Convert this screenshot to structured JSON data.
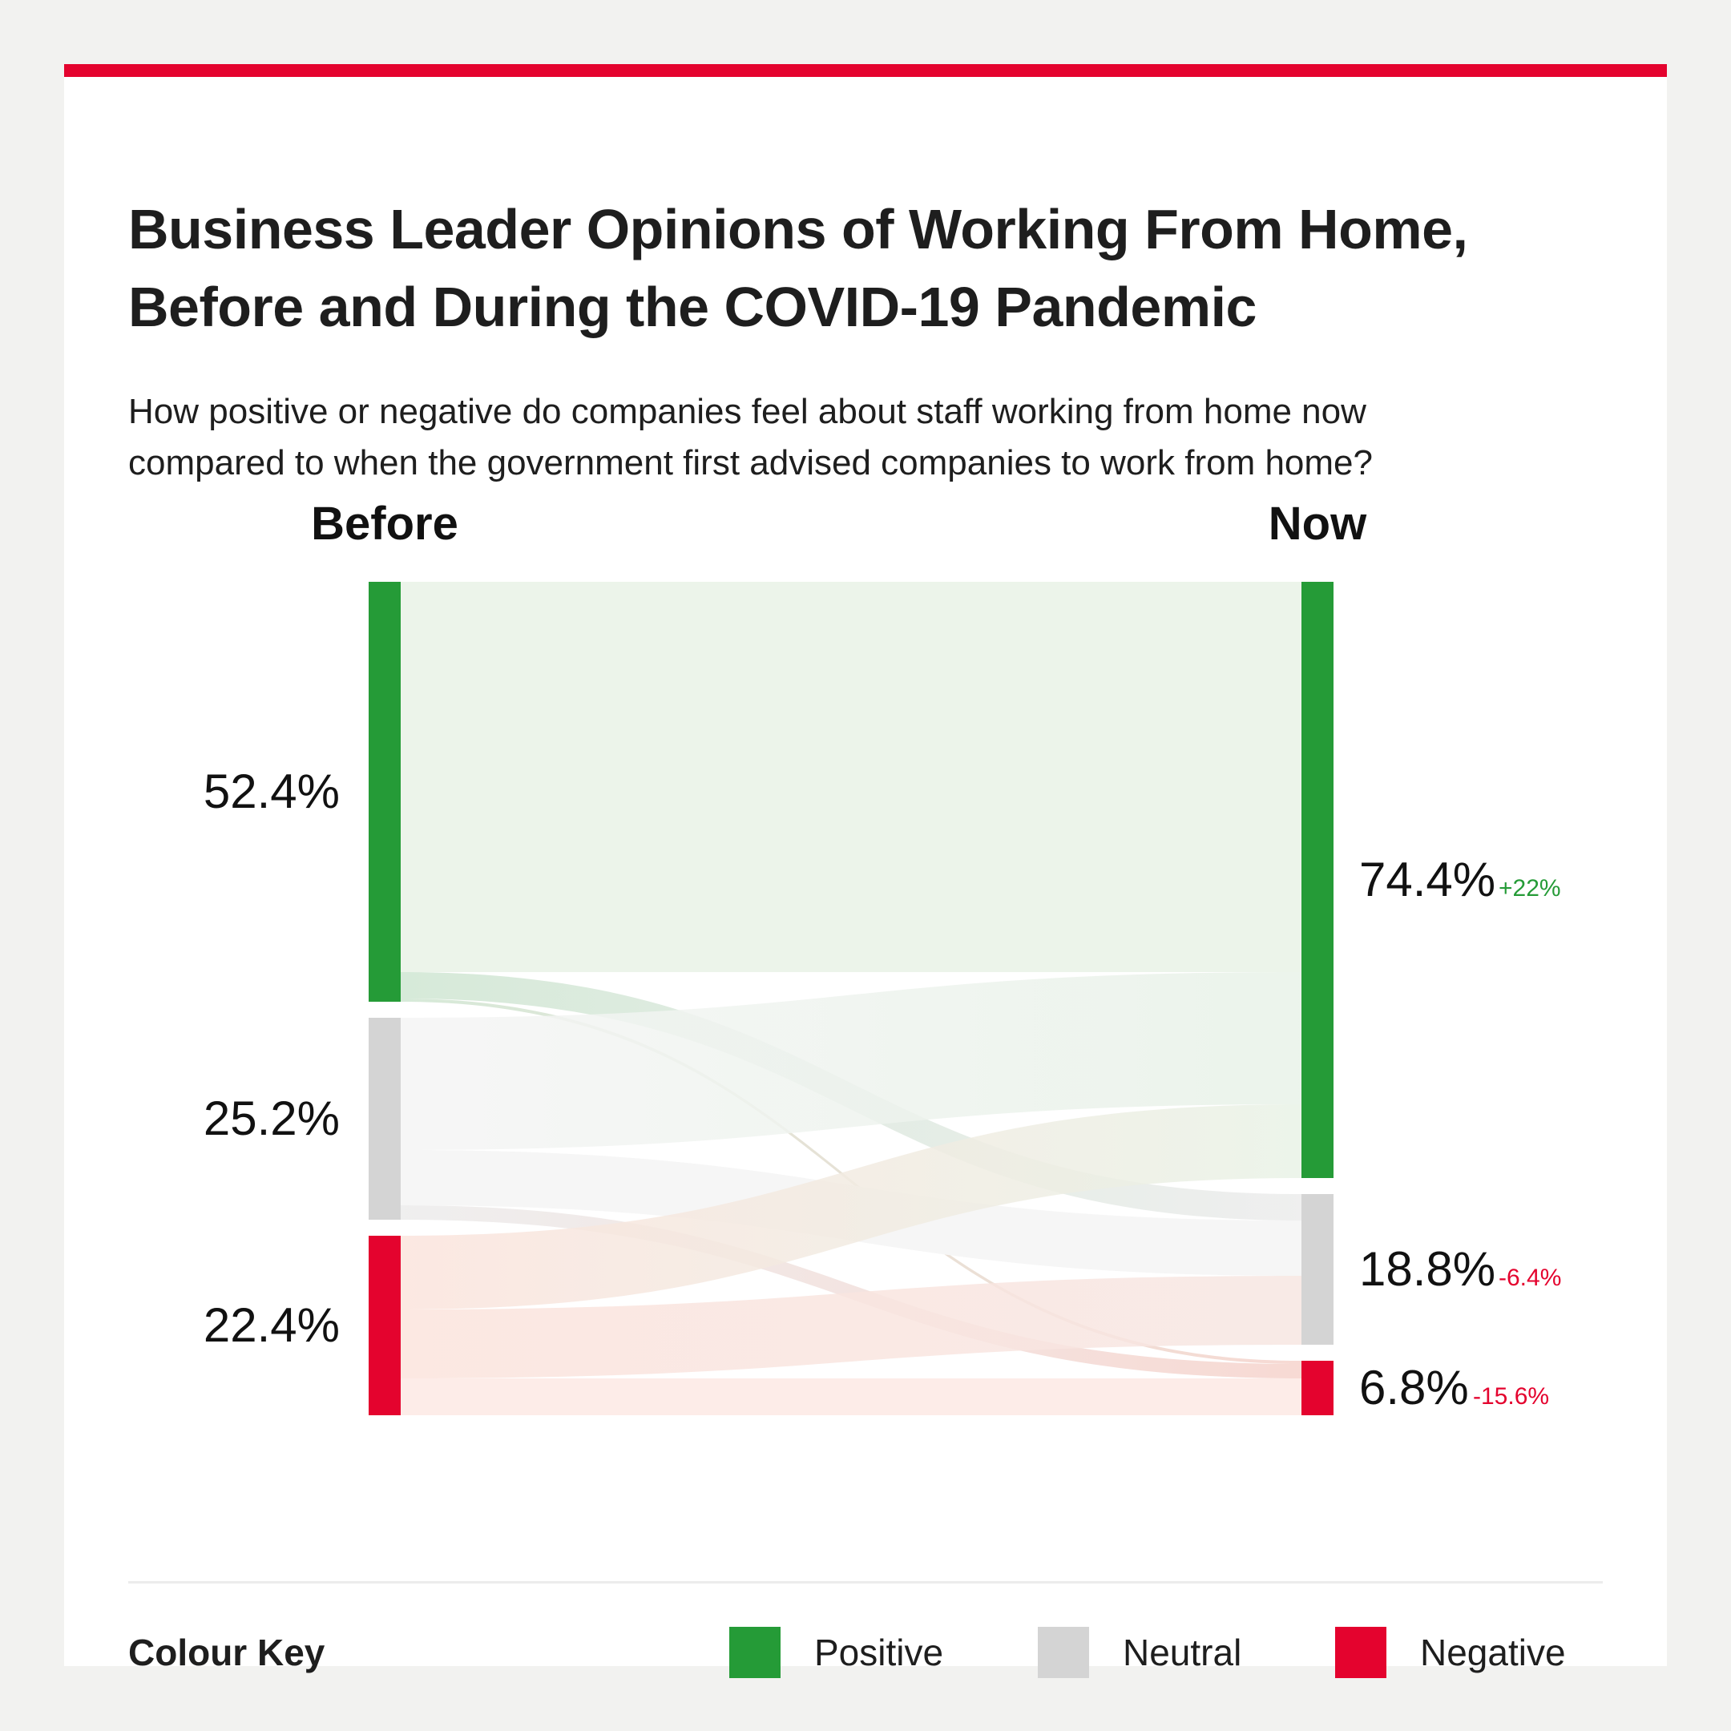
{
  "title_lines": [
    "Business Leader Opinions of Working From Home,",
    "Before and During the COVID-19 Pandemic"
  ],
  "subtitle_lines": [
    "How positive or negative do companies feel about  staff working from home now",
    "compared to when the government first advised companies to work from home?"
  ],
  "colors": {
    "accent": "#e4032e",
    "positive": "#259b37",
    "neutral": "#d4d4d4",
    "negative": "#e4032e",
    "positive_change_text": "#259b37",
    "negative_change_text": "#e4032e"
  },
  "chart_data": {
    "type": "sankey",
    "columns": [
      "Before",
      "Now"
    ],
    "categories": [
      "Positive",
      "Neutral",
      "Negative"
    ],
    "before": [
      {
        "category": "Positive",
        "value": 52.4,
        "label": "52.4%"
      },
      {
        "category": "Neutral",
        "value": 25.2,
        "label": "25.2%"
      },
      {
        "category": "Negative",
        "value": 22.4,
        "label": "22.4%"
      }
    ],
    "now": [
      {
        "category": "Positive",
        "value": 74.4,
        "label": "74.4%",
        "change": "+22%"
      },
      {
        "category": "Neutral",
        "value": 18.8,
        "label": "18.8%",
        "change": "-6.4%"
      },
      {
        "category": "Negative",
        "value": 6.8,
        "label": "6.8%",
        "change": "-15.6%"
      }
    ],
    "flows": [
      {
        "from": "Positive",
        "to": "Positive",
        "value": 48.7
      },
      {
        "from": "Positive",
        "to": "Neutral",
        "value": 3.3
      },
      {
        "from": "Positive",
        "to": "Negative",
        "value": 0.4
      },
      {
        "from": "Neutral",
        "to": "Positive",
        "value": 16.5
      },
      {
        "from": "Neutral",
        "to": "Neutral",
        "value": 6.9
      },
      {
        "from": "Neutral",
        "to": "Negative",
        "value": 1.8
      },
      {
        "from": "Negative",
        "to": "Positive",
        "value": 9.2
      },
      {
        "from": "Negative",
        "to": "Neutral",
        "value": 8.6
      },
      {
        "from": "Negative",
        "to": "Negative",
        "value": 4.6
      }
    ]
  },
  "legend": {
    "title": "Colour Key",
    "items": [
      {
        "label": "Positive",
        "color": "#259b37"
      },
      {
        "label": "Neutral",
        "color": "#d4d4d4"
      },
      {
        "label": "Negative",
        "color": "#e4032e"
      }
    ]
  }
}
